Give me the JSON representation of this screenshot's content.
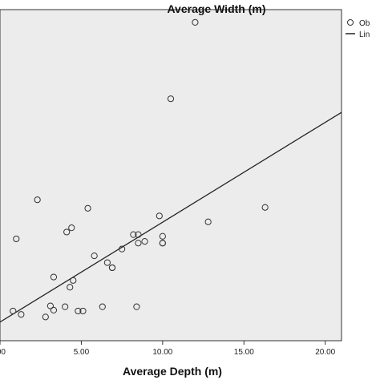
{
  "chart_data": {
    "type": "scatter",
    "title": "Average Width (m)",
    "xlabel": "Average Depth (m)",
    "ylabel": "",
    "xlim": [
      0,
      21
    ],
    "x_ticks": [
      0,
      5,
      10,
      15,
      20
    ],
    "x_tick_labels": [
      ".00",
      "5.00",
      "10.00",
      "15.00",
      "20.00"
    ],
    "grid": false,
    "legend": {
      "placement": "top-right",
      "items": [
        "Ob",
        "Lin"
      ]
    },
    "series": [
      {
        "name": "Ob",
        "marker": "circle",
        "points": [
          {
            "x": 0.8,
            "y": 5.0
          },
          {
            "x": 1.3,
            "y": 4.6
          },
          {
            "x": 1.0,
            "y": 13.5
          },
          {
            "x": 2.3,
            "y": 18.1
          },
          {
            "x": 2.8,
            "y": 4.3
          },
          {
            "x": 3.1,
            "y": 5.6
          },
          {
            "x": 3.3,
            "y": 9.0
          },
          {
            "x": 3.3,
            "y": 5.1
          },
          {
            "x": 4.0,
            "y": 5.5
          },
          {
            "x": 4.1,
            "y": 14.3
          },
          {
            "x": 4.3,
            "y": 7.8
          },
          {
            "x": 4.4,
            "y": 14.8
          },
          {
            "x": 4.5,
            "y": 8.6
          },
          {
            "x": 4.8,
            "y": 5.0
          },
          {
            "x": 5.1,
            "y": 5.0
          },
          {
            "x": 5.4,
            "y": 17.1
          },
          {
            "x": 5.8,
            "y": 11.5
          },
          {
            "x": 6.3,
            "y": 5.5
          },
          {
            "x": 6.6,
            "y": 10.7
          },
          {
            "x": 6.9,
            "y": 10.1
          },
          {
            "x": 6.9,
            "y": 10.1
          },
          {
            "x": 7.5,
            "y": 12.3
          },
          {
            "x": 8.2,
            "y": 14.0
          },
          {
            "x": 8.4,
            "y": 5.5
          },
          {
            "x": 8.5,
            "y": 13.0
          },
          {
            "x": 8.5,
            "y": 14.0
          },
          {
            "x": 8.9,
            "y": 13.2
          },
          {
            "x": 9.8,
            "y": 16.2
          },
          {
            "x": 10.0,
            "y": 13.8
          },
          {
            "x": 10.0,
            "y": 13.0
          },
          {
            "x": 10.0,
            "y": 13.0
          },
          {
            "x": 10.5,
            "y": 30.0
          },
          {
            "x": 12.0,
            "y": 39.0
          },
          {
            "x": 12.8,
            "y": 15.5
          },
          {
            "x": 16.3,
            "y": 17.2
          }
        ]
      },
      {
        "name": "Lin",
        "type": "line",
        "points": [
          {
            "x": 0,
            "y": 3.7
          },
          {
            "x": 21,
            "y": 28.4
          }
        ]
      }
    ]
  }
}
